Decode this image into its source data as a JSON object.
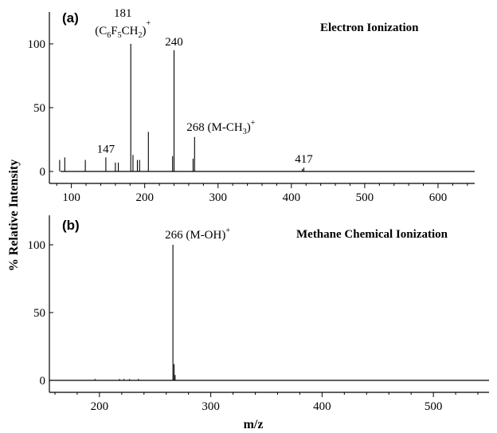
{
  "chart_data": [
    {
      "type": "bar",
      "panel_label": "(a)",
      "title": "Electron Ionization",
      "xlabel": "",
      "ylabel": "% Relative Intensity",
      "xlim": [
        70,
        650
      ],
      "ylim": [
        0,
        120
      ],
      "xticks": [
        100,
        200,
        300,
        400,
        500,
        600
      ],
      "yticks": [
        0,
        50,
        100
      ],
      "x": [
        84,
        91,
        119,
        147,
        160,
        164,
        181,
        184,
        190,
        193,
        205,
        238,
        240,
        266,
        268,
        415,
        417
      ],
      "values": [
        9,
        11,
        9,
        11,
        7,
        7,
        100,
        13,
        9,
        9,
        31,
        12,
        95,
        10,
        27,
        2,
        3
      ],
      "annotations": [
        {
          "x": 181,
          "text": "181",
          "formula": [
            "(C",
            "6",
            "F",
            "5",
            "CH",
            "2",
            ")",
            "+"
          ]
        },
        {
          "x": 240,
          "text": "240"
        },
        {
          "x": 268,
          "text": "268 (M-CH",
          "sub": "3",
          "tail": ")",
          "sup": "+"
        },
        {
          "x": 147,
          "text": "147"
        },
        {
          "x": 417,
          "text": "417"
        }
      ]
    },
    {
      "type": "bar",
      "panel_label": "(b)",
      "title": "Methane Chemical Ionization",
      "xlabel": "m/z",
      "ylabel": "% Relative Intensity",
      "xlim": [
        155,
        550
      ],
      "ylim": [
        0,
        120
      ],
      "xticks": [
        200,
        300,
        400,
        500
      ],
      "yticks": [
        0,
        50,
        100
      ],
      "x": [
        196,
        218,
        222,
        227,
        235,
        266,
        267,
        268
      ],
      "values": [
        1,
        1,
        1,
        1,
        1,
        100,
        12,
        4
      ],
      "annotations": [
        {
          "x": 266,
          "text": "266 (M-OH)",
          "sup": "+"
        }
      ]
    }
  ]
}
